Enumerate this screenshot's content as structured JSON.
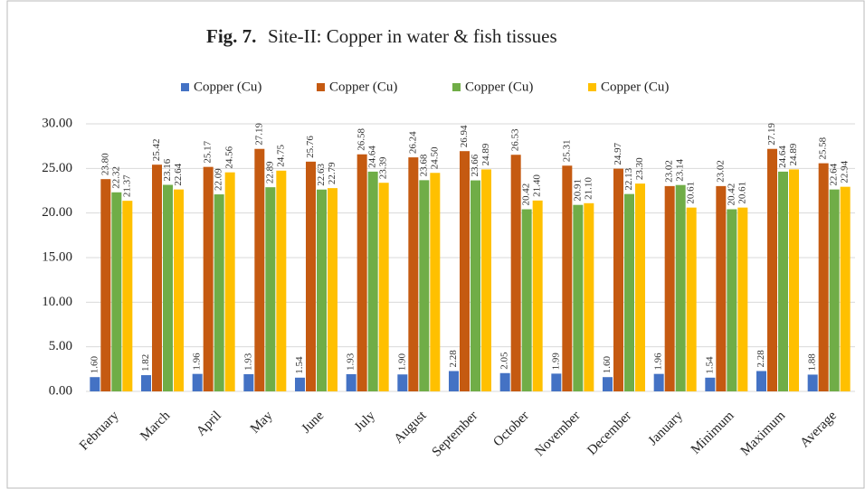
{
  "chart_data": {
    "type": "bar",
    "figure_label": "Fig. 7.",
    "title": "Site-II: Copper in water & fish tissues",
    "categories": [
      "February",
      "March",
      "April",
      "May",
      "June",
      "July",
      "August",
      "September",
      "October",
      "November",
      "December",
      "January",
      "Minimum",
      "Maximum",
      "Average"
    ],
    "series": [
      {
        "name": "Copper (Cu)",
        "color": "#4472c4",
        "values": [
          1.6,
          1.82,
          1.96,
          1.93,
          1.54,
          1.93,
          1.9,
          2.28,
          2.05,
          1.99,
          1.6,
          1.96,
          1.54,
          2.28,
          1.88
        ],
        "value_labels": [
          "1.60",
          "1.82",
          "1.96",
          "1.93",
          "1.54",
          "1.93",
          "1.90",
          "2.28",
          "2.05",
          "1.99",
          "1.60",
          "1.96",
          "1.54",
          "2.28",
          "1.88"
        ]
      },
      {
        "name": "Copper (Cu)",
        "color": "#c55a11",
        "values": [
          23.8,
          25.42,
          25.17,
          27.19,
          25.76,
          26.58,
          26.24,
          26.94,
          26.53,
          25.31,
          24.97,
          23.02,
          23.02,
          27.19,
          25.58
        ],
        "value_labels": [
          "23.80",
          "25.42",
          "25.17",
          "27.19",
          "25.76",
          "26.58",
          "26.24",
          "26.94",
          "26.53",
          "25.31",
          "24.97",
          "23.02",
          "23.02",
          "27.19",
          "25.58"
        ]
      },
      {
        "name": "Copper (Cu)",
        "color": "#70ad47",
        "values": [
          22.32,
          23.16,
          22.09,
          22.89,
          22.63,
          24.64,
          23.68,
          23.66,
          20.42,
          20.91,
          22.13,
          23.14,
          20.42,
          24.64,
          22.64
        ],
        "value_labels": [
          "22.32",
          "23.16",
          "22.09",
          "22.89",
          "22.63",
          "24.64",
          "23.68",
          "23.66",
          "20.42",
          "20.91",
          "22.13",
          "23.14",
          "20.42",
          "24.64",
          "22.64"
        ]
      },
      {
        "name": "Copper (Cu)",
        "color": "#ffc000",
        "values": [
          21.37,
          22.64,
          24.56,
          24.75,
          22.79,
          23.39,
          24.5,
          24.89,
          21.4,
          21.1,
          23.3,
          20.61,
          20.61,
          24.89,
          22.94
        ],
        "value_labels": [
          "21.37",
          "22.64",
          "24.56",
          "24.75",
          "22.79",
          "23.39",
          "24.50",
          "24.89",
          "21.40",
          "21.10",
          "23.30",
          "20.61",
          "20.61",
          "24.89",
          "22.94"
        ]
      }
    ],
    "ylim": [
      0,
      30
    ],
    "yticks": [
      {
        "value": 0,
        "label": "0.00"
      },
      {
        "value": 5,
        "label": "5.00"
      },
      {
        "value": 10,
        "label": "10.00"
      },
      {
        "value": 15,
        "label": "15.00"
      },
      {
        "value": 20,
        "label": "20.00"
      },
      {
        "value": 25,
        "label": "25.00"
      },
      {
        "value": 30,
        "label": "30.00"
      }
    ],
    "grid": true,
    "legend": "top"
  }
}
